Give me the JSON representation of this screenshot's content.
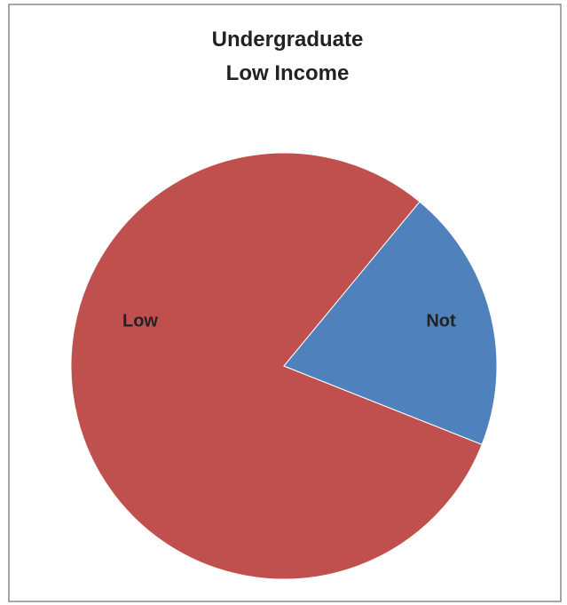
{
  "chart_data": {
    "type": "pie",
    "title": "Undergraduate Low Income",
    "categories": [
      "Low",
      "Not"
    ],
    "values": [
      80,
      20
    ],
    "colors": [
      "#c0504d",
      "#4f81bd"
    ]
  }
}
